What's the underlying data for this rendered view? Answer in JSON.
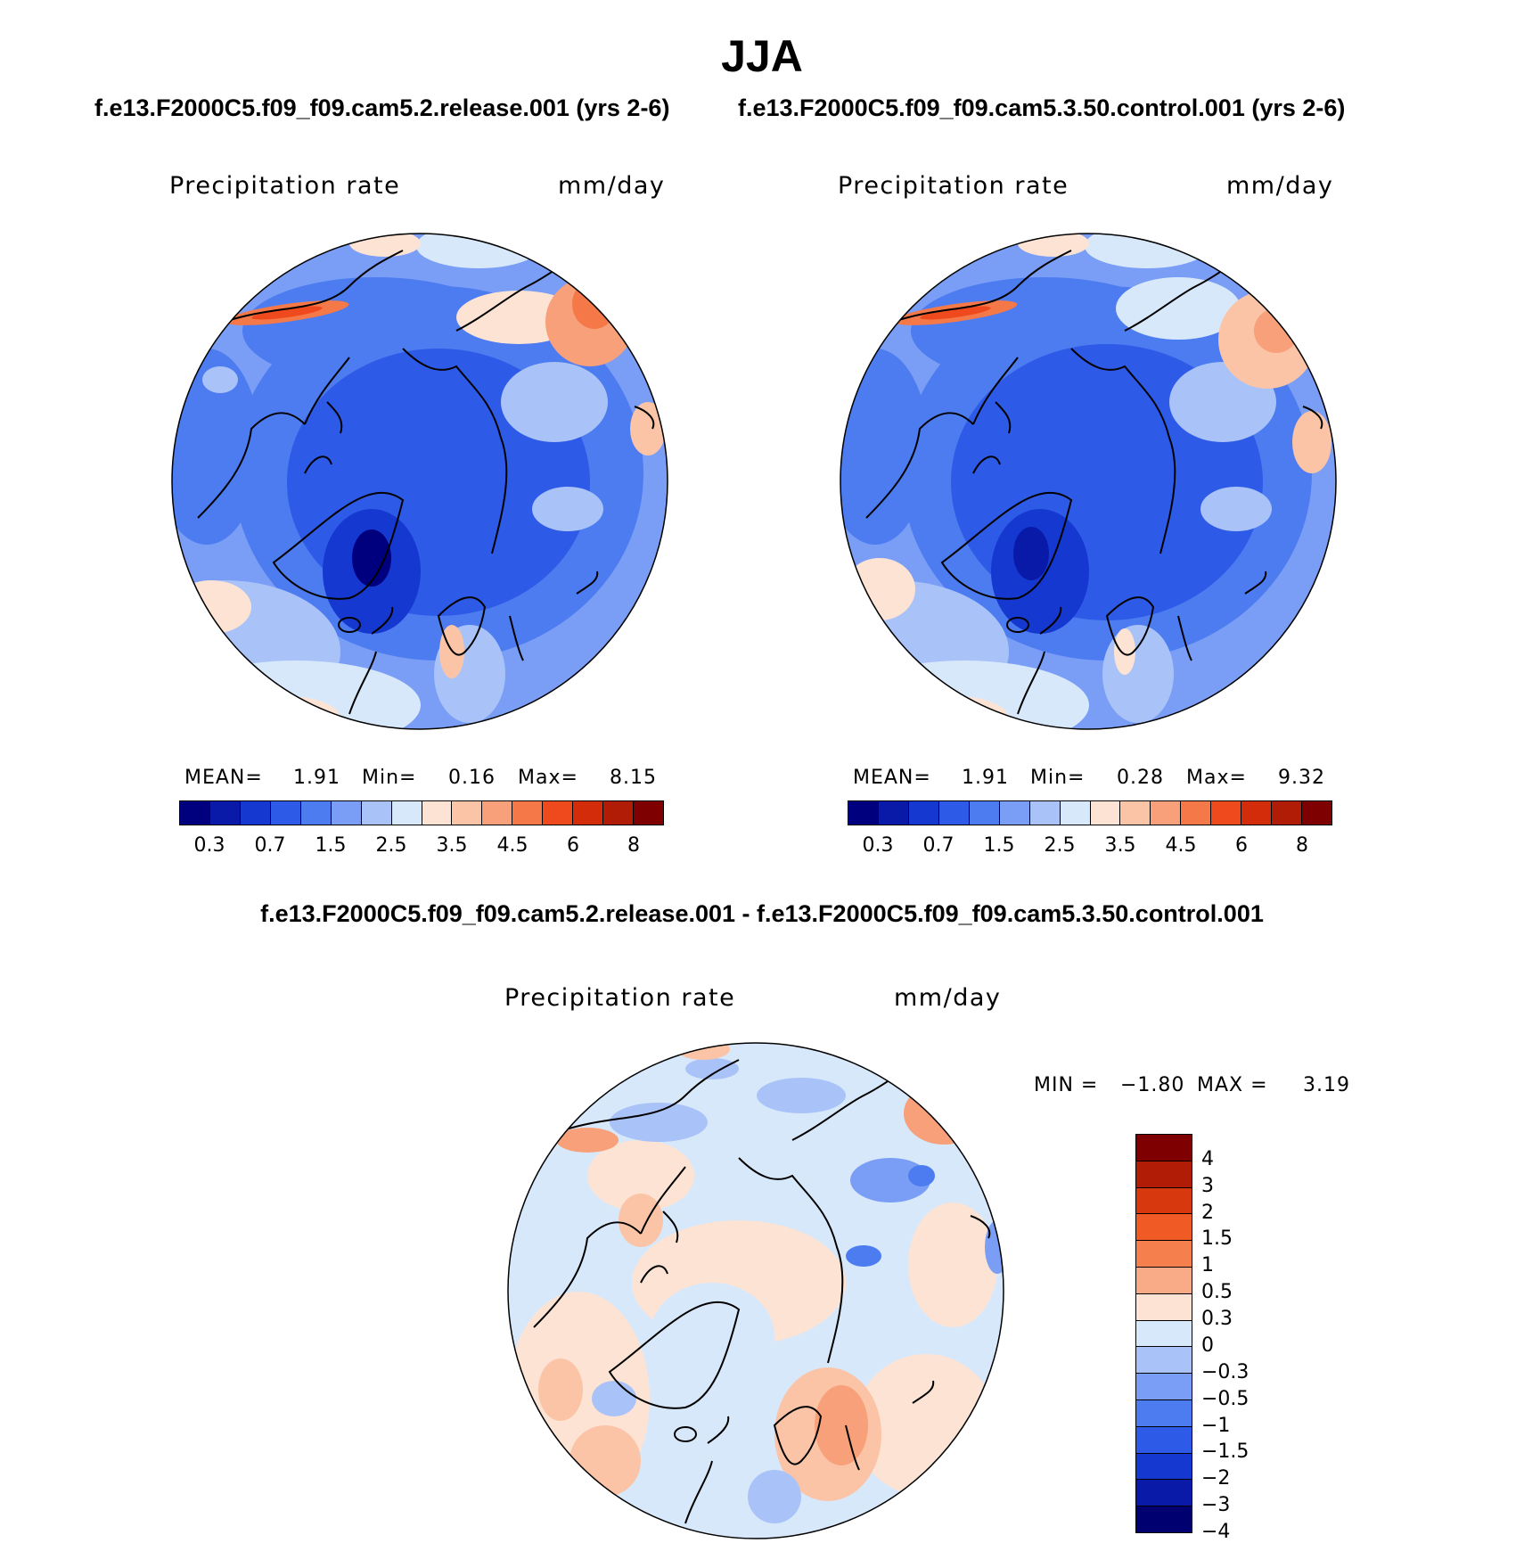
{
  "title": "JJA",
  "chart_data": [
    {
      "type": "heatmap",
      "projection": "north polar stereographic",
      "case_label": "f.e13.F2000C5.f09_f09.cam5.2.release.001 (yrs 2-6)",
      "variable": "Precipitation rate",
      "units": "mm/day",
      "stats": {
        "mean_label": "MEAN=",
        "mean": "1.91",
        "min_label": "Min=",
        "min": "0.16",
        "max_label": "Max=",
        "max": "8.15"
      },
      "colorbar_ticks": [
        "0.3",
        "0.7",
        "1.5",
        "2.5",
        "3.5",
        "4.5",
        "6",
        "8"
      ]
    },
    {
      "type": "heatmap",
      "projection": "north polar stereographic",
      "case_label": "f.e13.F2000C5.f09_f09.cam5.3.50.control.001 (yrs 2-6)",
      "variable": "Precipitation rate",
      "units": "mm/day",
      "stats": {
        "mean_label": "MEAN=",
        "mean": "1.91",
        "min_label": "Min=",
        "min": "0.28",
        "max_label": "Max=",
        "max": "9.32"
      },
      "colorbar_ticks": [
        "0.3",
        "0.7",
        "1.5",
        "2.5",
        "3.5",
        "4.5",
        "6",
        "8"
      ]
    },
    {
      "type": "heatmap",
      "projection": "north polar stereographic",
      "case_label": "f.e13.F2000C5.f09_f09.cam5.2.release.001 - f.e13.F2000C5.f09_f09.cam5.3.50.control.001",
      "variable": "Precipitation rate",
      "units": "mm/day",
      "stats": {
        "min_label": "MIN =",
        "min": "−1.80",
        "max_label": "MAX =",
        "max": "3.19"
      },
      "colorbar_ticks": [
        "4",
        "3",
        "2",
        "1.5",
        "1",
        "0.5",
        "0.3",
        "0",
        "−0.3",
        "−0.5",
        "−1",
        "−1.5",
        "−2",
        "−3",
        "−4"
      ]
    }
  ],
  "colors": {
    "abs_scale": [
      "#00007f",
      "#0a1aa8",
      "#1538d0",
      "#2e5ae8",
      "#4c7cf0",
      "#7a9ef5",
      "#a9c3f8",
      "#d8e8fb",
      "#fde3d4",
      "#fbc4a6",
      "#f8a07a",
      "#f57848",
      "#ee4a1e",
      "#d32c0a",
      "#b01c06",
      "#7f0000"
    ],
    "diff_scale": [
      "#7f0000",
      "#b01c06",
      "#d8380e",
      "#f05a24",
      "#f5804e",
      "#f9aa86",
      "#fde3d4",
      "#d8e8fb",
      "#a9c3f8",
      "#7a9ef5",
      "#4c7cf0",
      "#2e5ae8",
      "#1538d0",
      "#0a1aa8",
      "#000070"
    ]
  }
}
